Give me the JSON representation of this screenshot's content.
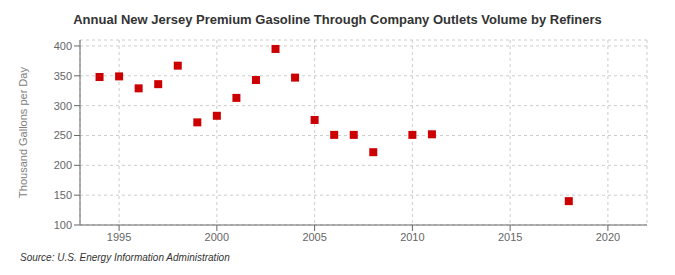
{
  "chart_data": {
    "type": "scatter",
    "title": "Annual New Jersey Premium Gasoline Through Company Outlets Volume by Refiners",
    "ylabel": "Thousand Gallons per Day",
    "annotations": [
      "Source: U.S. Energy Information Administration"
    ],
    "x": [
      1994,
      1995,
      1996,
      1997,
      1998,
      1999,
      2000,
      2001,
      2002,
      2003,
      2004,
      2005,
      2006,
      2007,
      2008,
      2010,
      2011,
      2018
    ],
    "values": [
      348,
      349,
      329,
      336,
      367,
      272,
      283,
      313,
      343,
      395,
      347,
      276,
      251,
      251,
      222,
      251,
      252,
      140
    ],
    "color": "#cc0000",
    "marker": "square",
    "xlim": [
      1993,
      2022
    ],
    "xticks": [
      1995,
      2000,
      2005,
      2010,
      2015,
      2020
    ],
    "ylim": [
      100,
      410
    ],
    "yticks": [
      100,
      150,
      200,
      250,
      300,
      350,
      400
    ],
    "grid": true
  }
}
